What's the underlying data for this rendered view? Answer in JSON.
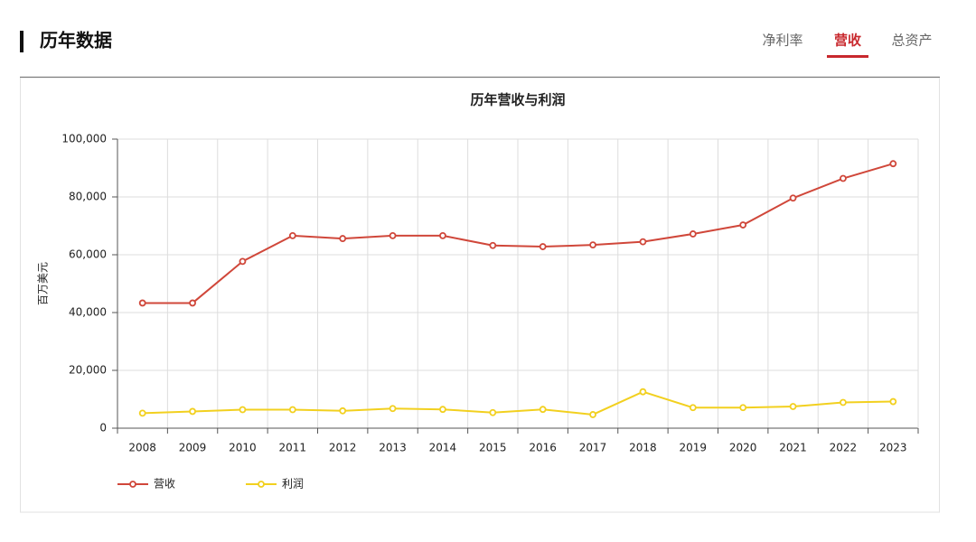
{
  "header": {
    "title": "历年数据",
    "tabs": [
      "净利率",
      "营收",
      "总资产"
    ],
    "active_tab": 1
  },
  "chart_data": {
    "type": "line",
    "title": "历年营收与利润",
    "y_label": "百万美元",
    "categories": [
      "2008",
      "2009",
      "2010",
      "2011",
      "2012",
      "2013",
      "2014",
      "2015",
      "2016",
      "2017",
      "2018",
      "2019",
      "2020",
      "2021",
      "2022",
      "2023"
    ],
    "series": [
      {
        "name": "营收",
        "color": "#d0473a",
        "values": [
          43300,
          43300,
          57700,
          66600,
          65600,
          66600,
          66600,
          63200,
          62800,
          63400,
          64500,
          67200,
          70300,
          79600,
          86400,
          91500
        ]
      },
      {
        "name": "利润",
        "color": "#f2d01f",
        "values": [
          5200,
          5800,
          6400,
          6400,
          6000,
          6800,
          6500,
          5400,
          6500,
          4700,
          12600,
          7100,
          7100,
          7500,
          8900,
          9200
        ]
      }
    ],
    "ylim": [
      0,
      100000
    ],
    "yticks": [
      0,
      {
        "value": 20000,
        "label": "20,000"
      },
      {
        "value": 40000,
        "label": "40,000"
      },
      {
        "value": 60000,
        "label": "60,000"
      },
      {
        "value": 80000,
        "label": "80,000"
      },
      {
        "value": 100000,
        "label": "100,000"
      }
    ],
    "grid": true,
    "legend": "bottom-left"
  }
}
